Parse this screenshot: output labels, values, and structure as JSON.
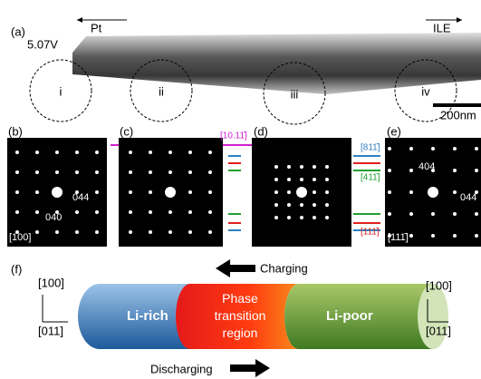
{
  "panel_a": {
    "label": "(a)",
    "left_arrow": "Pt",
    "right_arrow": "ILE",
    "voltage": "5.07V",
    "regions": [
      "i",
      "ii",
      "iii",
      "iv"
    ],
    "scale_bar": "200nm"
  },
  "panel_b": {
    "label": "(b)",
    "spots": [
      "044",
      "040"
    ],
    "zone": "[100]"
  },
  "panel_c": {
    "label": "(c)",
    "zone": "[10.11̄]"
  },
  "panel_d": {
    "label": "(d)",
    "zones": [
      "[811̄]",
      "[411̄]",
      "[111̄]"
    ]
  },
  "panel_e": {
    "label": "(e)",
    "spots": [
      "404",
      "044"
    ],
    "zone": "[111̄]"
  },
  "panel_f": {
    "label": "(f)",
    "charging": "Charging",
    "discharging": "Discharging",
    "left_axes": [
      "[100]",
      "[011]"
    ],
    "right_axes": [
      "[100]",
      "[011]"
    ],
    "segments": [
      "Li-rich",
      "Phase transition region",
      "Li-poor"
    ]
  }
}
